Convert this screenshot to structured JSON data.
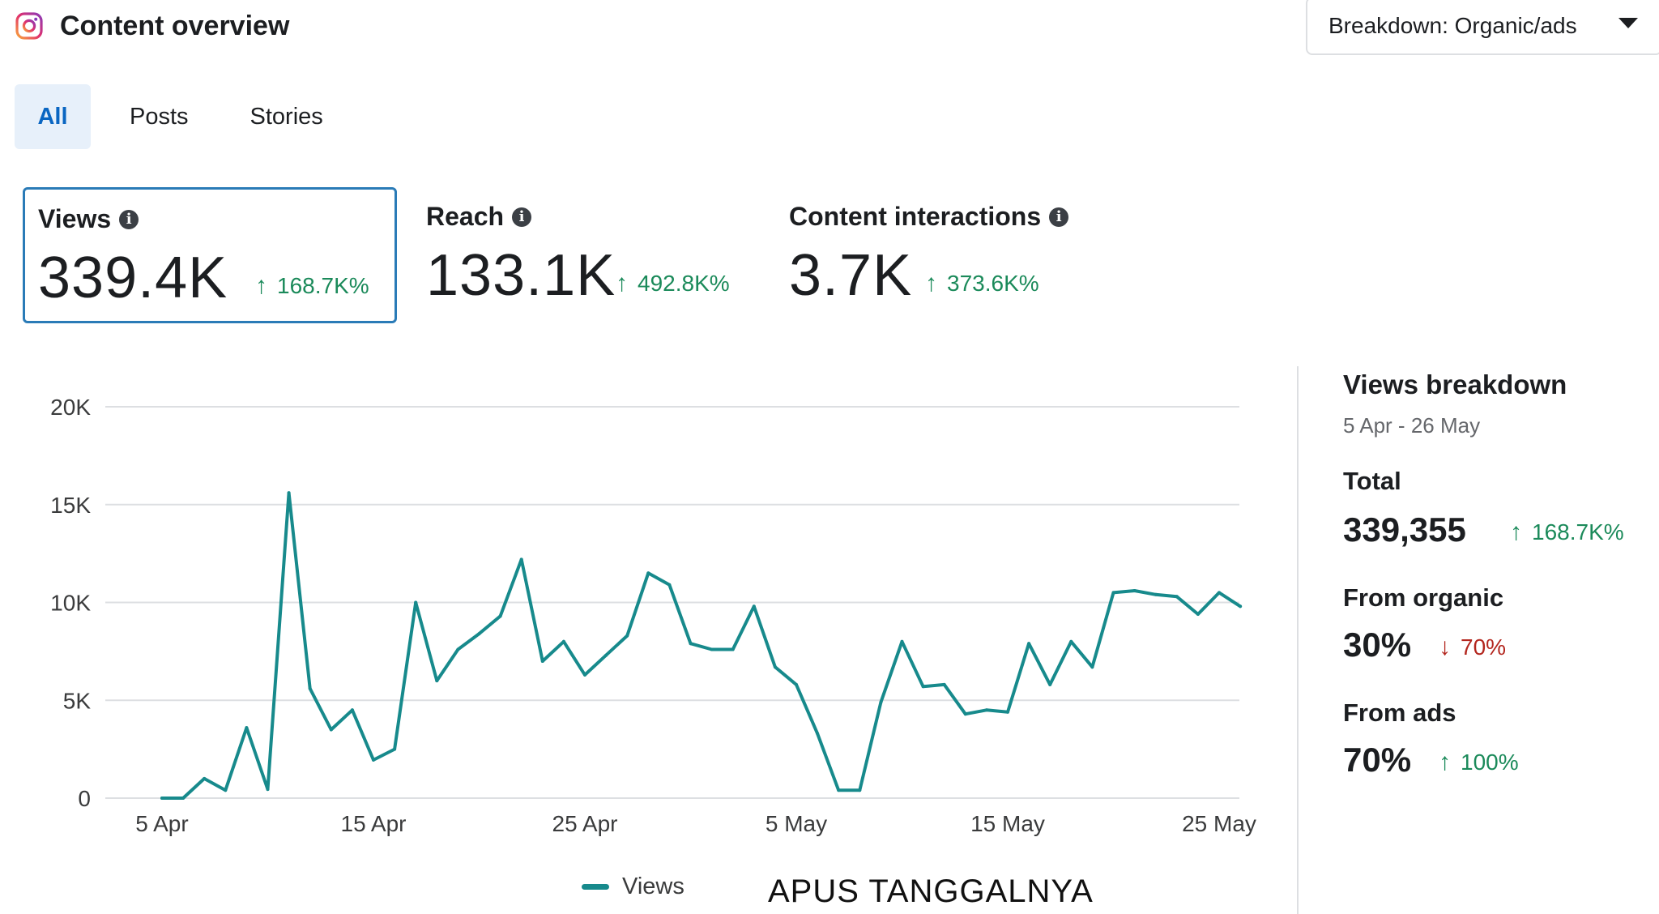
{
  "header": {
    "title": "Content overview",
    "icon": "instagram-icon",
    "breakdown_label": "Breakdown: Organic/ads"
  },
  "tabs": [
    {
      "label": "All",
      "active": true
    },
    {
      "label": "Posts",
      "active": false
    },
    {
      "label": "Stories",
      "active": false
    }
  ],
  "metrics": [
    {
      "label": "Views",
      "value": "339.4K",
      "delta": "168.7K%",
      "direction": "up",
      "selected": true
    },
    {
      "label": "Reach",
      "value": "133.1K",
      "delta": "492.8K%",
      "direction": "up",
      "selected": false
    },
    {
      "label": "Content interactions",
      "value": "3.7K",
      "delta": "373.6K%",
      "direction": "up",
      "selected": false
    }
  ],
  "chart_data": {
    "type": "line",
    "x_tick_labels": [
      "5 Apr",
      "15 Apr",
      "25 Apr",
      "5 May",
      "15 May",
      "25 May"
    ],
    "y_tick_labels": [
      "0",
      "5K",
      "10K",
      "15K",
      "20K"
    ],
    "ylim": [
      0,
      20000
    ],
    "x_start_label": "5 Apr",
    "series": [
      {
        "name": "Views",
        "color": "#178a8c",
        "values": [
          0,
          0,
          1000,
          400,
          3600,
          450,
          15600,
          5600,
          3500,
          4500,
          1950,
          2500,
          10000,
          6000,
          7600,
          8400,
          9300,
          12200,
          7000,
          8000,
          6300,
          7300,
          8300,
          11500,
          10900,
          7900,
          7600,
          7600,
          9800,
          6700,
          5800,
          3300,
          400,
          400,
          4900,
          8000,
          5700,
          5800,
          4300,
          4500,
          4400,
          7900,
          5800,
          8000,
          6700,
          10500,
          10600,
          10400,
          10300,
          9400,
          10500,
          9800
        ]
      }
    ],
    "grid": true,
    "legend_position": "bottom"
  },
  "legend_label": "Views",
  "overlay_text": "APUS TANGGALNYA",
  "breakdown": {
    "title": "Views breakdown",
    "date_range": "5 Apr - 26 May",
    "total_label": "Total",
    "total_value": "339,355",
    "total_delta": "168.7K%",
    "organic_label": "From organic",
    "organic_value": "30%",
    "organic_delta": "70%",
    "ads_label": "From ads",
    "ads_value": "70%",
    "ads_delta": "100%"
  },
  "colors": {
    "accent": "#0a66c2",
    "positive": "#1b8a5a",
    "negative": "#b3261e",
    "line": "#178a8c"
  }
}
